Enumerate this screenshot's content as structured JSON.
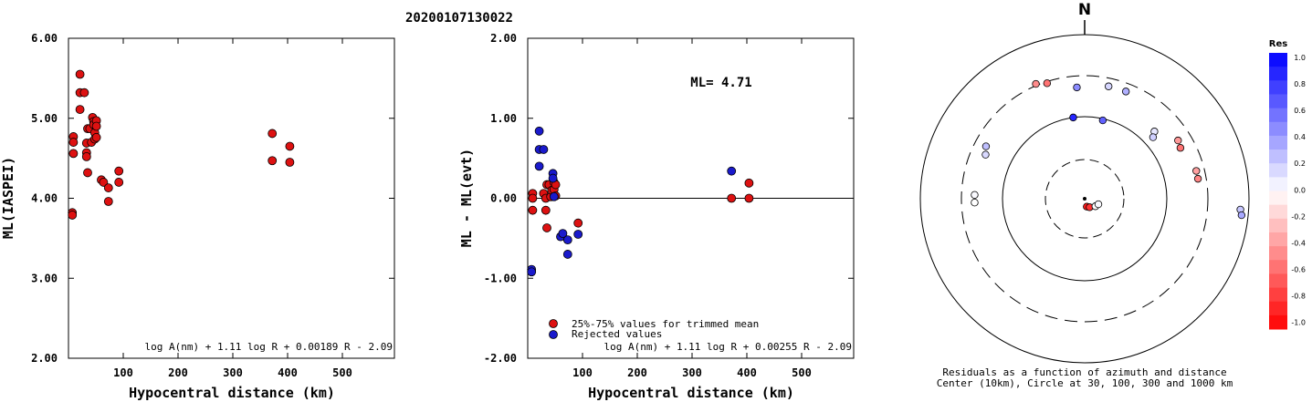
{
  "title": "20200107130022",
  "chart_data": [
    {
      "type": "scatter",
      "id": "left",
      "xlabel": "Hypocentral distance (km)",
      "ylabel": "ML(IASPEI)",
      "xlim": [
        0,
        595
      ],
      "ylim": [
        2.0,
        6.0
      ],
      "xticks": [
        100,
        200,
        300,
        400,
        500
      ],
      "yticks": [
        "2.00",
        "3.00",
        "4.00",
        "5.00",
        "6.00"
      ],
      "formula": "log A(nm) + 1.11 log R + 0.00189 R - 2.09",
      "series": [
        {
          "color": "#dd1111",
          "points": [
            [
              7,
              3.82
            ],
            [
              7,
              3.79
            ],
            [
              9,
              4.77
            ],
            [
              9,
              4.7
            ],
            [
              9,
              4.56
            ],
            [
              21,
              5.55
            ],
            [
              21,
              5.32
            ],
            [
              21,
              5.11
            ],
            [
              29,
              5.32
            ],
            [
              33,
              4.69
            ],
            [
              33,
              4.57
            ],
            [
              33,
              4.52
            ],
            [
              35,
              4.32
            ],
            [
              35,
              4.87
            ],
            [
              39,
              4.87
            ],
            [
              42,
              4.7
            ],
            [
              44,
              5.01
            ],
            [
              46,
              4.96
            ],
            [
              46,
              4.92
            ],
            [
              48,
              4.82
            ],
            [
              48,
              4.74
            ],
            [
              51,
              4.97
            ],
            [
              51,
              4.9
            ],
            [
              51,
              4.76
            ],
            [
              60,
              4.23
            ],
            [
              64,
              4.2
            ],
            [
              73,
              4.13
            ],
            [
              73,
              3.96
            ],
            [
              92,
              4.34
            ],
            [
              92,
              4.2
            ],
            [
              372,
              4.81
            ],
            [
              372,
              4.47
            ],
            [
              404,
              4.65
            ],
            [
              404,
              4.45
            ]
          ]
        }
      ]
    },
    {
      "type": "scatter",
      "id": "middle",
      "xlabel": "Hypocentral distance (km)",
      "ylabel": "ML - ML(evt)",
      "xlim": [
        0,
        595
      ],
      "ylim": [
        -2.0,
        2.0
      ],
      "xticks": [
        100,
        200,
        300,
        400,
        500
      ],
      "yticks": [
        "-2.00",
        "-1.00",
        "0.00",
        "1.00",
        "2.00"
      ],
      "annotation": "ML= 4.71",
      "formula": "log A(nm) + 1.11 log R + 0.00255 R - 2.09",
      "legend": [
        "25%-75% values for trimmed mean",
        "Rejected values"
      ],
      "series": [
        {
          "name": "25%-75% values for trimmed mean",
          "color": "#dd1111",
          "points": [
            [
              9,
              0.06
            ],
            [
              9,
              0.0
            ],
            [
              9,
              -0.15
            ],
            [
              29,
              0.06
            ],
            [
              33,
              -0.15
            ],
            [
              33,
              0.0
            ],
            [
              35,
              0.17
            ],
            [
              35,
              -0.37
            ],
            [
              39,
              0.17
            ],
            [
              42,
              0.02
            ],
            [
              44,
              0.1
            ],
            [
              48,
              0.2
            ],
            [
              48,
              0.11
            ],
            [
              51,
              0.17
            ],
            [
              51,
              0.03
            ],
            [
              92,
              -0.31
            ],
            [
              372,
              0.0
            ],
            [
              404,
              0.19
            ],
            [
              404,
              0.0
            ]
          ]
        },
        {
          "name": "Rejected values",
          "color": "#1a1acc",
          "points": [
            [
              7,
              -0.89
            ],
            [
              7,
              -0.92
            ],
            [
              21,
              0.84
            ],
            [
              21,
              0.61
            ],
            [
              21,
              0.4
            ],
            [
              29,
              0.61
            ],
            [
              46,
              0.31
            ],
            [
              46,
              0.25
            ],
            [
              48,
              0.02
            ],
            [
              60,
              -0.48
            ],
            [
              64,
              -0.44
            ],
            [
              73,
              -0.52
            ],
            [
              73,
              -0.7
            ],
            [
              92,
              -0.45
            ],
            [
              372,
              0.34
            ]
          ]
        }
      ]
    }
  ],
  "polar": {
    "north_label": "N",
    "caption_line1": "Residuals as a function of azimuth and distance",
    "caption_line2": "Center (10km), Circle at 30, 100, 300 and 1000 km",
    "stations": [
      {
        "az": 342,
        "r": 0.74,
        "res": -0.55
      },
      {
        "az": 337,
        "r": 0.76,
        "res": -0.45
      },
      {
        "az": 298,
        "r": 0.68,
        "res": 0.25
      },
      {
        "az": 294,
        "r": 0.66,
        "res": 0.15
      },
      {
        "az": 272,
        "r": 0.67,
        "res": 0.02
      },
      {
        "az": 268,
        "r": 0.67,
        "res": 0.0
      },
      {
        "az": 356,
        "r": 0.68,
        "res": 0.45
      },
      {
        "az": 352,
        "r": 0.5,
        "res": 0.85
      },
      {
        "az": 13,
        "r": 0.49,
        "res": 0.62
      },
      {
        "az": 12,
        "r": 0.7,
        "res": 0.16
      },
      {
        "az": 21,
        "r": 0.7,
        "res": 0.31
      },
      {
        "az": 46,
        "r": 0.59,
        "res": 0.1
      },
      {
        "az": 48,
        "r": 0.56,
        "res": 0.19
      },
      {
        "az": 58,
        "r": 0.67,
        "res": -0.4
      },
      {
        "az": 62,
        "r": 0.66,
        "res": -0.55
      },
      {
        "az": 76,
        "r": 0.7,
        "res": -0.37
      },
      {
        "az": 80,
        "r": 0.7,
        "res": -0.48
      },
      {
        "az": 94,
        "r": 0.95,
        "res": 0.22
      },
      {
        "az": 96,
        "r": 0.96,
        "res": 0.34
      },
      {
        "az": 165,
        "r": 0.05,
        "res": -0.9
      },
      {
        "az": 150,
        "r": 0.06,
        "res": -0.8
      },
      {
        "az": 125,
        "r": 0.08,
        "res": 0.0
      },
      {
        "az": 112,
        "r": 0.09,
        "res": 0.02
      }
    ]
  },
  "colorbar": {
    "title": "Res",
    "labels": [
      "1.0",
      "0.8",
      "0.6",
      "0.4",
      "0.2",
      "0.0",
      "-0.2",
      "-0.4",
      "-0.6",
      "-0.8",
      "-1.0"
    ]
  }
}
